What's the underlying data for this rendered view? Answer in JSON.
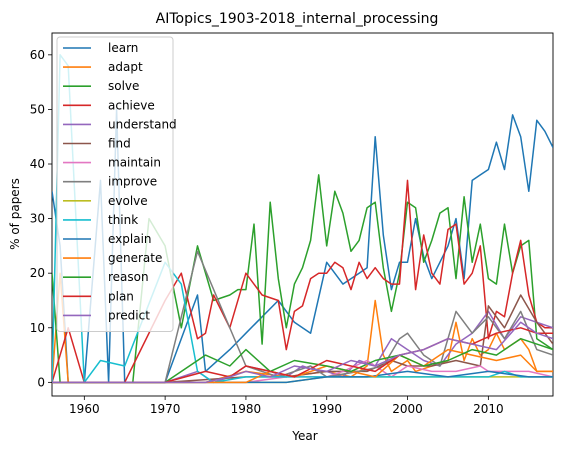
{
  "chart_data": {
    "type": "line",
    "title": "AITopics_1903-2018_internal_processing",
    "xlabel": "Year",
    "ylabel": "% of papers",
    "xlim": [
      1956,
      2018
    ],
    "ylim": [
      -2.5,
      64
    ],
    "xticks": [
      1960,
      1970,
      1980,
      1990,
      2000,
      2010
    ],
    "yticks": [
      0,
      10,
      20,
      30,
      40,
      50,
      60
    ],
    "grid": false,
    "legend_position": "top-left",
    "series": [
      {
        "name": "learn",
        "color": "#1f77b4",
        "x": [
          1956,
          1957,
          1958,
          1960,
          1962,
          1963,
          1964,
          1965,
          1970,
          1974,
          1975,
          1978,
          1980,
          1982,
          1984,
          1986,
          1988,
          1990,
          1992,
          1994,
          1995,
          1996,
          1997,
          1998,
          1999,
          2000,
          2001,
          2002,
          2003,
          2004,
          2005,
          2006,
          2007,
          2008,
          2009,
          2010,
          2011,
          2012,
          2013,
          2014,
          2015,
          2016,
          2017,
          2018
        ],
        "y": [
          35,
          25,
          0,
          0,
          37,
          0,
          50,
          0,
          0,
          16,
          2,
          6,
          9,
          12,
          15,
          11,
          9,
          22,
          18,
          20,
          21,
          45,
          27,
          17,
          22,
          22,
          30,
          23,
          19,
          22,
          25,
          30,
          19,
          37,
          38,
          39,
          44,
          39,
          49,
          45,
          35,
          48,
          46,
          43
        ]
      },
      {
        "name": "adapt",
        "color": "#ff7f0e",
        "x": [
          1956,
          1957,
          1958,
          1960,
          1962,
          1965,
          1970,
          1975,
          1980,
          1985,
          1990,
          1993,
          1995,
          1996,
          1997,
          1998,
          2000,
          2001,
          2003,
          2005,
          2006,
          2007,
          2008,
          2009,
          2010,
          2011,
          2012,
          2013,
          2014,
          2015,
          2016,
          2017,
          2018
        ],
        "y": [
          0,
          20,
          0,
          0,
          0,
          0,
          0,
          0,
          2,
          1,
          2,
          1,
          3,
          15,
          5,
          2,
          4,
          2,
          3,
          4,
          11,
          4,
          8,
          5,
          6,
          9,
          6,
          7,
          8,
          6,
          2,
          2,
          2
        ]
      },
      {
        "name": "solve",
        "color": "#2ca02c",
        "x": [
          1956,
          1957,
          1958,
          1960,
          1962,
          1964,
          1966,
          1968,
          1970,
          1972,
          1974,
          1976,
          1978,
          1979,
          1980,
          1981,
          1982,
          1983,
          1984,
          1985,
          1986,
          1987,
          1988,
          1989,
          1990,
          1991,
          1992,
          1993,
          1994,
          1995,
          1996,
          1997,
          1998,
          1999,
          2000,
          2001,
          2002,
          2003,
          2004,
          2005,
          2006,
          2007,
          2008,
          2009,
          2010,
          2011,
          2012,
          2013,
          2014,
          2015,
          2016,
          2017,
          2018
        ],
        "y": [
          20,
          0,
          0,
          0,
          0,
          0,
          0,
          30,
          25,
          10,
          25,
          15,
          16,
          17,
          17,
          29,
          7,
          33,
          19,
          10,
          18,
          21,
          26,
          38,
          25,
          35,
          31,
          24,
          26,
          32,
          33,
          21,
          13,
          20,
          33,
          32,
          22,
          26,
          31,
          32,
          19,
          34,
          22,
          29,
          19,
          18,
          29,
          20,
          25,
          26,
          8,
          7,
          6
        ]
      },
      {
        "name": "achieve",
        "color": "#d62728",
        "x": [
          1956,
          1958,
          1960,
          1965,
          1970,
          1972,
          1974,
          1975,
          1976,
          1978,
          1980,
          1982,
          1984,
          1985,
          1986,
          1987,
          1988,
          1989,
          1990,
          1991,
          1992,
          1993,
          1994,
          1995,
          1996,
          1997,
          1998,
          1999,
          2000,
          2001,
          2002,
          2003,
          2004,
          2005,
          2006,
          2007,
          2008,
          2009,
          2010,
          2011,
          2012,
          2013,
          2014,
          2015,
          2016,
          2017,
          2018
        ],
        "y": [
          0,
          10,
          0,
          0,
          15,
          20,
          8,
          9,
          16,
          10,
          20,
          16,
          15,
          6,
          13,
          14,
          19,
          20,
          20,
          22,
          21,
          17,
          22,
          19,
          21,
          19,
          18,
          18,
          37,
          17,
          27,
          20,
          18,
          28,
          29,
          18,
          20,
          25,
          8,
          13,
          12,
          20,
          26,
          16,
          11,
          10,
          10
        ]
      },
      {
        "name": "understand",
        "color": "#9467bd",
        "x": [
          1956,
          1960,
          1965,
          1970,
          1974,
          1976,
          1978,
          1980,
          1983,
          1985,
          1987,
          1989,
          1990,
          1992,
          1994,
          1996,
          1998,
          2000,
          2002,
          2004,
          2006,
          2008,
          2010,
          2012,
          2014,
          2016,
          2018
        ],
        "y": [
          0,
          0,
          0,
          0,
          2,
          0,
          1,
          3,
          2,
          1,
          3,
          2,
          2,
          1,
          4,
          3,
          8,
          6,
          4,
          3,
          7,
          9,
          13,
          8,
          12,
          11,
          10
        ]
      },
      {
        "name": "find",
        "color": "#8c564b",
        "x": [
          1956,
          1960,
          1965,
          1970,
          1980,
          1985,
          1990,
          1995,
          1998,
          2000,
          2003,
          2006,
          2009,
          2010,
          2012,
          2014,
          2016,
          2018
        ],
        "y": [
          0,
          0,
          0,
          0,
          1,
          1,
          2,
          2,
          4,
          3,
          3,
          4,
          3,
          14,
          10,
          16,
          11,
          7
        ]
      },
      {
        "name": "maintain",
        "color": "#e377c2",
        "x": [
          1956,
          1960,
          1965,
          1970,
          1980,
          1985,
          1990,
          1992,
          1995,
          1998,
          2000,
          2003,
          2006,
          2009,
          2010,
          2012,
          2015,
          2018
        ],
        "y": [
          0,
          0,
          0,
          0,
          0,
          1,
          1,
          2,
          4,
          1,
          3,
          2,
          2,
          3,
          2,
          2,
          2,
          1
        ]
      },
      {
        "name": "improve",
        "color": "#7f7f7f",
        "x": [
          1956,
          1960,
          1965,
          1970,
          1974,
          1980,
          1984,
          1988,
          1990,
          1994,
          1997,
          1999,
          2000,
          2002,
          2004,
          2006,
          2008,
          2010,
          2012,
          2014,
          2016,
          2018
        ],
        "y": [
          0,
          0,
          0,
          0,
          24,
          3,
          1,
          3,
          1,
          2,
          3,
          8,
          9,
          5,
          3,
          13,
          9,
          12,
          8,
          13,
          6,
          5
        ]
      },
      {
        "name": "evolve",
        "color": "#bcbd22",
        "x": [
          1956,
          1960,
          1965,
          1970,
          1980,
          1985,
          1990,
          1995,
          2000,
          2005,
          2010,
          2014,
          2016,
          2018
        ],
        "y": [
          0,
          0,
          0,
          0,
          0,
          0,
          1,
          1,
          1,
          1,
          1,
          1,
          1,
          1
        ]
      },
      {
        "name": "think",
        "color": "#17becf",
        "x": [
          1956,
          1957,
          1958,
          1960,
          1962,
          1965,
          1970,
          1972,
          1974,
          1976,
          1980,
          1985,
          1990,
          1995,
          2000,
          2005,
          2010,
          2012,
          2014,
          2016,
          2018
        ],
        "y": [
          0,
          60,
          58,
          0,
          4,
          3,
          22,
          18,
          2,
          0,
          1,
          1,
          1,
          1,
          1,
          1,
          1,
          2,
          1,
          1,
          1
        ]
      },
      {
        "name": "explain",
        "color": "#1f77b4",
        "x": [
          1956,
          1960,
          1964,
          1965,
          1970,
          1975,
          1980,
          1985,
          1990,
          1995,
          2000,
          2005,
          2010,
          2015,
          2018
        ],
        "y": [
          0,
          0,
          0,
          0,
          0,
          0,
          0,
          0,
          1,
          1,
          2,
          1,
          2,
          1,
          1
        ]
      },
      {
        "name": "generate",
        "color": "#ff7f0e",
        "x": [
          1956,
          1960,
          1965,
          1970,
          1975,
          1980,
          1983,
          1986,
          1990,
          1993,
          1996,
          1999,
          2002,
          2005,
          2008,
          2011,
          2014,
          2016,
          2018
        ],
        "y": [
          0,
          0,
          0,
          0,
          0,
          0,
          2,
          1,
          3,
          2,
          1,
          5,
          3,
          6,
          5,
          4,
          5,
          2,
          2
        ]
      },
      {
        "name": "reason",
        "color": "#2ca02c",
        "x": [
          1956,
          1960,
          1965,
          1970,
          1975,
          1978,
          1980,
          1983,
          1986,
          1990,
          1993,
          1996,
          1999,
          2002,
          2005,
          2008,
          2011,
          2014,
          2016,
          2018
        ],
        "y": [
          0,
          0,
          0,
          0,
          5,
          3,
          6,
          2,
          4,
          3,
          2,
          4,
          5,
          3,
          4,
          6,
          5,
          8,
          7,
          6
        ]
      },
      {
        "name": "plan",
        "color": "#d62728",
        "x": [
          1956,
          1960,
          1965,
          1970,
          1975,
          1978,
          1980,
          1983,
          1986,
          1990,
          1993,
          1996,
          1999,
          2002,
          2005,
          2008,
          2011,
          2014,
          2016,
          2018
        ],
        "y": [
          0,
          0,
          0,
          0,
          2,
          1,
          3,
          2,
          1,
          4,
          3,
          2,
          5,
          6,
          8,
          7,
          9,
          10,
          9,
          9
        ]
      },
      {
        "name": "predict",
        "color": "#9467bd",
        "x": [
          1956,
          1960,
          1965,
          1970,
          1975,
          1978,
          1980,
          1983,
          1986,
          1990,
          1993,
          1996,
          1999,
          2002,
          2005,
          2008,
          2011,
          2014,
          2016,
          2018
        ],
        "y": [
          0,
          0,
          0,
          0,
          0,
          1,
          2,
          1,
          3,
          2,
          4,
          3,
          5,
          6,
          8,
          7,
          6,
          11,
          9,
          8
        ]
      }
    ]
  }
}
